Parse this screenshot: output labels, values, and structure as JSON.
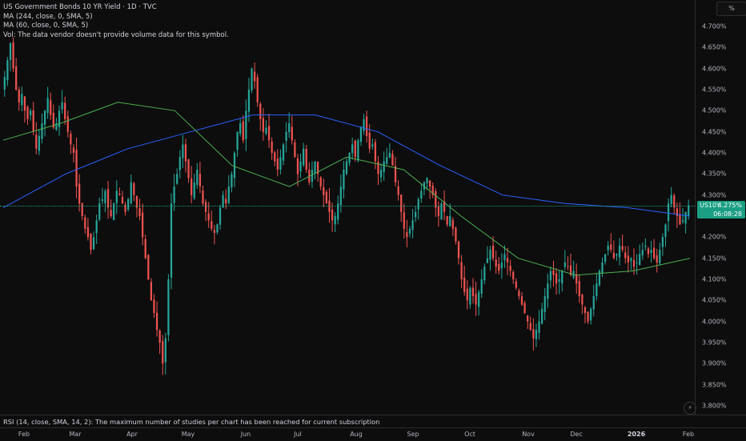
{
  "legend": {
    "title": "US Government Bonds 10 YR Yield · 1D · TVC",
    "ma1": "MA (244, close, 0, SMA, 5)",
    "ma2": "MA (60, close, 0, SMA, 5)",
    "vol": "Vol: The data vendor doesn't provide volume data for this symbol."
  },
  "price_axis": {
    "unit": "%",
    "ticks": [
      "4.700%",
      "4.650%",
      "4.600%",
      "4.550%",
      "4.500%",
      "4.450%",
      "4.400%",
      "4.350%",
      "4.300%",
      "4.250%",
      "4.200%",
      "4.150%",
      "4.100%",
      "4.050%",
      "4.000%",
      "3.950%",
      "3.900%",
      "3.850%",
      "3.800%"
    ]
  },
  "last_price": {
    "symbol": "US10Y",
    "value": "4.275%",
    "timer": "06:08:28"
  },
  "time_axis": {
    "labels": [
      "Feb",
      "Mar",
      "Apr",
      "May",
      "Jun",
      "Jul",
      "Aug",
      "Sep",
      "Oct",
      "Nov",
      "Dec",
      "2026",
      "Feb"
    ]
  },
  "rsi": {
    "text": "RSI (14, close, SMA, 14, 2): The maximum number of studies per chart has been reached for current subscription"
  },
  "bolt_icon": "⚡",
  "colors": {
    "up": "#26a69a",
    "down": "#ef5350",
    "ma244": "#2962ff",
    "ma60": "#4caf50",
    "background": "#0d0d0d",
    "price_label": "#1b9e83"
  },
  "chart_data": {
    "type": "candlestick",
    "interval": "1D",
    "ylim": [
      3.79,
      4.73
    ],
    "months": [
      "Feb",
      "Mar",
      "Apr",
      "May",
      "Jun",
      "Jul",
      "Aug",
      "Sep",
      "Oct",
      "Nov",
      "Dec",
      "2026",
      "Feb"
    ],
    "closes": [
      4.58,
      4.62,
      4.66,
      4.6,
      4.55,
      4.52,
      4.54,
      4.5,
      4.48,
      4.5,
      4.45,
      4.41,
      4.44,
      4.47,
      4.5,
      4.53,
      4.49,
      4.46,
      4.47,
      4.5,
      4.52,
      4.48,
      4.45,
      4.42,
      4.4,
      4.32,
      4.28,
      4.25,
      4.22,
      4.2,
      4.17,
      4.2,
      4.24,
      4.28,
      4.29,
      4.31,
      4.27,
      4.25,
      4.28,
      4.31,
      4.3,
      4.28,
      4.26,
      4.29,
      4.33,
      4.3,
      4.27,
      4.25,
      4.2,
      4.15,
      4.1,
      4.05,
      4.02,
      3.98,
      3.95,
      3.9,
      3.96,
      4.1,
      4.28,
      4.32,
      4.35,
      4.39,
      4.42,
      4.38,
      4.34,
      4.3,
      4.33,
      4.36,
      4.32,
      4.28,
      4.26,
      4.24,
      4.22,
      4.21,
      4.23,
      4.27,
      4.3,
      4.28,
      4.32,
      4.35,
      4.4,
      4.45,
      4.47,
      4.43,
      4.5,
      4.55,
      4.6,
      4.57,
      4.52,
      4.48,
      4.45,
      4.46,
      4.43,
      4.4,
      4.38,
      4.36,
      4.39,
      4.42,
      4.45,
      4.47,
      4.43,
      4.39,
      4.35,
      4.38,
      4.41,
      4.36,
      4.33,
      4.36,
      4.38,
      4.35,
      4.32,
      4.3,
      4.28,
      4.26,
      4.24,
      4.25,
      4.28,
      4.32,
      4.36,
      4.38,
      4.4,
      4.42,
      4.39,
      4.43,
      4.46,
      4.48,
      4.44,
      4.41,
      4.42,
      4.38,
      4.35,
      4.36,
      4.38,
      4.39,
      4.4,
      4.37,
      4.33,
      4.3,
      4.26,
      4.22,
      4.2,
      4.22,
      4.24,
      4.26,
      4.29,
      4.31,
      4.33,
      4.34,
      4.32,
      4.3,
      4.27,
      4.25,
      4.28,
      4.26,
      4.23,
      4.25,
      4.22,
      4.19,
      4.15,
      4.1,
      4.07,
      4.05,
      4.08,
      4.06,
      4.04,
      4.07,
      4.1,
      4.13,
      4.15,
      4.17,
      4.15,
      4.13,
      4.12,
      4.14,
      4.16,
      4.14,
      4.12,
      4.1,
      4.08,
      4.06,
      4.04,
      4.02,
      4.0,
      3.98,
      3.96,
      3.98,
      4.0,
      4.03,
      4.06,
      4.09,
      4.12,
      4.11,
      4.09,
      4.1,
      4.12,
      4.14,
      4.13,
      4.11,
      4.12,
      4.09,
      4.06,
      4.04,
      4.02,
      4.0,
      4.03,
      4.06,
      4.09,
      4.12,
      4.14,
      4.16,
      4.18,
      4.17,
      4.15,
      4.16,
      4.18,
      4.17,
      4.15,
      4.14,
      4.15,
      4.13,
      4.14,
      4.16,
      4.17,
      4.18,
      4.16,
      4.17,
      4.15,
      4.14,
      4.17,
      4.2,
      4.23,
      4.28,
      4.3,
      4.27,
      4.25,
      4.23,
      4.24,
      4.26,
      4.275
    ],
    "ma244": [
      4.27,
      4.35,
      4.41,
      4.45,
      4.49,
      4.49,
      4.45,
      4.37,
      4.3,
      4.28,
      4.27,
      4.25
    ],
    "ma60": [
      4.43,
      4.47,
      4.52,
      4.5,
      4.37,
      4.32,
      4.39,
      4.36,
      4.25,
      4.15,
      4.11,
      4.12,
      4.15
    ]
  }
}
